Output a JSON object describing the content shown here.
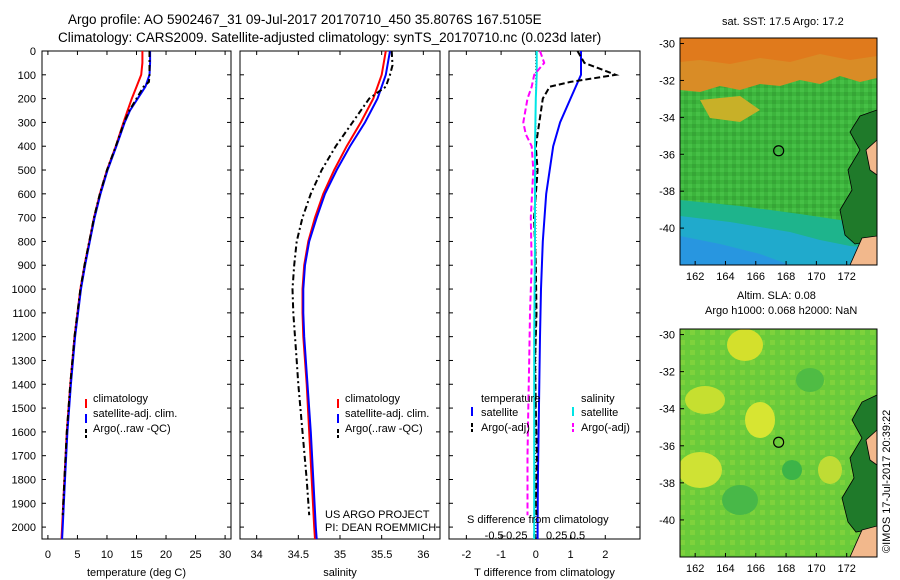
{
  "header": {
    "title_line1": "Argo profile: AO 5902467_31 09-Jul-2017 20170710_450 35.8076S 167.5105E",
    "title_line2": "Climatology: CARS2009. Satellite-adjusted climatology: synTS_20170710.nc (0.023d later)"
  },
  "credit": "©IMOS 17-Jul-2017 20:39:22",
  "project_note": [
    "US ARGO PROJECT",
    "PI: DEAN ROEMMICH"
  ],
  "maps": {
    "sst_title": "sat. SST: 17.5 Argo: 17.2",
    "sla_title_line1": "Altim. SLA: 0.08",
    "sla_title_line2": "Argo h1000: 0.068 h2000: NaN",
    "lon_ticks": [
      "162",
      "164",
      "166",
      "168",
      "170",
      "172"
    ],
    "lat_ticks": [
      "-30",
      "-32",
      "-34",
      "-36",
      "-38",
      "-40"
    ],
    "float_lon": 167.51,
    "float_lat": -35.81
  },
  "colors": {
    "climatology": "#ff0000",
    "satellite": "#0000ff",
    "argo": "#000000",
    "satellite_s": "#00e5e5",
    "argo_s": "#ff00ff"
  },
  "chart_data": [
    {
      "type": "line",
      "xlabel": "temperature (deg C)",
      "ylabel": "",
      "xlim": [
        -1,
        31
      ],
      "ylim": [
        2050,
        0
      ],
      "xticks": [
        0,
        5,
        10,
        15,
        20,
        25,
        30
      ],
      "yticks": [
        0,
        100,
        200,
        300,
        400,
        500,
        600,
        700,
        800,
        900,
        1000,
        1100,
        1200,
        1300,
        1400,
        1500,
        1600,
        1700,
        1800,
        1900,
        2000
      ],
      "legend": [
        "climatology",
        "satellite-adj. clim.",
        "Argo(..raw -QC)"
      ],
      "series": [
        {
          "name": "climatology",
          "depth": [
            0,
            50,
            100,
            150,
            200,
            250,
            300,
            400,
            500,
            600,
            700,
            800,
            900,
            1000,
            1200,
            1400,
            1600,
            1800,
            2000,
            2050
          ],
          "values": [
            16.0,
            16.0,
            15.8,
            15.0,
            14.2,
            13.5,
            12.8,
            11.5,
            10.0,
            8.8,
            7.8,
            7.0,
            6.2,
            5.5,
            4.5,
            3.8,
            3.2,
            2.8,
            2.4,
            2.3
          ]
        },
        {
          "name": "satellite-adj. clim.",
          "depth": [
            0,
            50,
            100,
            150,
            200,
            250,
            300,
            400,
            500,
            600,
            700,
            800,
            900,
            1000,
            1200,
            1400,
            1600,
            1800,
            2000,
            2050
          ],
          "values": [
            17.3,
            17.3,
            17.2,
            16.5,
            15.2,
            13.9,
            13.0,
            11.6,
            10.1,
            8.9,
            7.9,
            7.1,
            6.3,
            5.6,
            4.6,
            3.9,
            3.3,
            2.9,
            2.5,
            2.4
          ]
        },
        {
          "name": "Argo(..raw -QC)",
          "depth": [
            0,
            50,
            100,
            130,
            150,
            200,
            250,
            300,
            400,
            500,
            600,
            700,
            800,
            900,
            1000,
            1200,
            1400,
            1600,
            1800,
            1950
          ],
          "values": [
            17.2,
            17.2,
            17.2,
            17.1,
            16.2,
            15.0,
            13.8,
            12.9,
            11.5,
            10.0,
            8.8,
            7.8,
            7.0,
            6.2,
            5.5,
            4.5,
            3.8,
            3.2,
            2.8,
            2.5
          ]
        }
      ]
    },
    {
      "type": "line",
      "xlabel": "salinity",
      "ylabel": "",
      "xlim": [
        33.8,
        36.2
      ],
      "ylim": [
        2050,
        0
      ],
      "xticks": [
        34,
        34.5,
        35,
        35.5,
        36
      ],
      "legend": [
        "climatology",
        "satellite-adj. clim.",
        "Argo(..raw -QC)"
      ],
      "series": [
        {
          "name": "climatology",
          "depth": [
            0,
            100,
            200,
            300,
            400,
            500,
            600,
            700,
            800,
            900,
            1000,
            1100,
            1200,
            1400,
            1600,
            1800,
            2000,
            2050
          ],
          "values": [
            35.55,
            35.5,
            35.4,
            35.25,
            35.08,
            34.93,
            34.8,
            34.7,
            34.62,
            34.57,
            34.55,
            34.55,
            34.56,
            34.6,
            34.63,
            34.66,
            34.69,
            34.7
          ]
        },
        {
          "name": "satellite-adj. clim.",
          "depth": [
            0,
            100,
            200,
            300,
            400,
            500,
            600,
            700,
            800,
            900,
            1000,
            1100,
            1200,
            1400,
            1600,
            1800,
            2000,
            2050
          ],
          "values": [
            35.6,
            35.55,
            35.45,
            35.3,
            35.12,
            34.96,
            34.82,
            34.72,
            34.63,
            34.58,
            34.56,
            34.56,
            34.57,
            34.61,
            34.65,
            34.68,
            34.71,
            34.72
          ]
        },
        {
          "name": "Argo(..raw -QC)",
          "depth": [
            0,
            60,
            100,
            150,
            200,
            300,
            400,
            500,
            600,
            700,
            800,
            900,
            1000,
            1100,
            1200,
            1300,
            1400,
            1600,
            1800,
            1950
          ],
          "values": [
            35.62,
            35.63,
            35.6,
            35.55,
            35.35,
            35.15,
            34.95,
            34.78,
            34.65,
            34.55,
            34.48,
            34.45,
            34.43,
            34.44,
            34.46,
            34.48,
            34.5,
            34.55,
            34.6,
            34.63
          ]
        }
      ]
    },
    {
      "type": "line",
      "xlabel": "T difference from climatology",
      "xlabel_top": "S difference from climatology",
      "ylabel": "",
      "xlim": [
        -2.5,
        3.0
      ],
      "ylim": [
        2050,
        0
      ],
      "xticks": [
        -2,
        -1,
        0,
        1,
        2
      ],
      "xticks_s": [
        "-0.5",
        "-0.25",
        "0",
        "0.25",
        "0.5"
      ],
      "legend_headers": [
        "temperature",
        "salinity"
      ],
      "legend": [
        "satellite",
        "Argo(-adj)",
        "satellite",
        "Argo(-adj)"
      ],
      "series": [
        {
          "name": "satellite",
          "depth": [
            0,
            100,
            200,
            300,
            400,
            600,
            800,
            1000,
            1200,
            1400,
            1600,
            1800,
            2000,
            2050
          ],
          "values": [
            1.3,
            1.3,
            1.0,
            0.7,
            0.5,
            0.3,
            0.2,
            0.15,
            0.12,
            0.1,
            0.08,
            0.06,
            0.05,
            0.05
          ]
        },
        {
          "name": "Argo(-adj)",
          "depth": [
            0,
            50,
            100,
            130,
            150,
            200,
            300,
            400,
            500,
            700,
            900,
            1100,
            1300,
            1500,
            1700,
            1900,
            1950
          ],
          "values": [
            1.2,
            1.4,
            2.3,
            1.0,
            0.4,
            0.2,
            0.1,
            0.0,
            0.05,
            -0.05,
            0.0,
            0.02,
            -0.02,
            0.0,
            0.03,
            0.0,
            0.02
          ]
        },
        {
          "name": "satellite",
          "depth": [
            0,
            100,
            200,
            400,
            800,
            1200,
            1600,
            2000,
            2050
          ],
          "values": [
            0.01,
            0.01,
            0.0,
            -0.01,
            -0.01,
            -0.02,
            -0.02,
            -0.02,
            -0.02
          ]
        },
        {
          "name": "Argo(-adj)",
          "depth": [
            0,
            50,
            100,
            150,
            200,
            300,
            350,
            400,
            500,
            700,
            900,
            1100,
            1300,
            1500,
            1700,
            1900,
            1950
          ],
          "values": [
            0.05,
            0.1,
            -0.02,
            -0.05,
            -0.1,
            -0.15,
            -0.12,
            -0.05,
            -0.03,
            -0.06,
            -0.05,
            -0.07,
            -0.08,
            -0.09,
            -0.1,
            -0.1,
            -0.1
          ]
        }
      ]
    }
  ]
}
